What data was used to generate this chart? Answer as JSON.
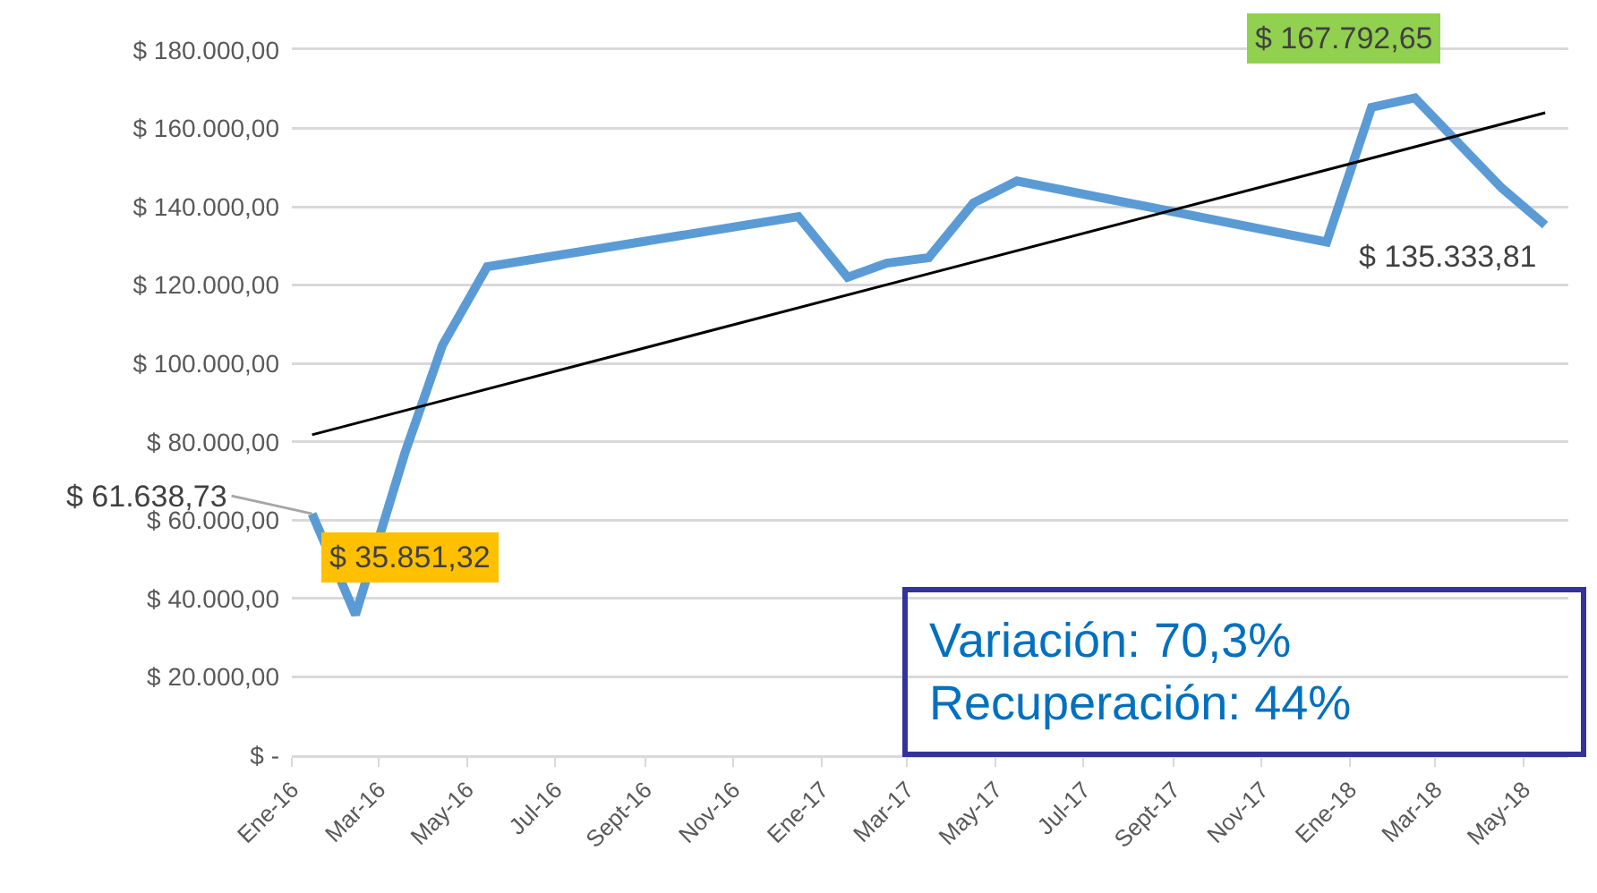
{
  "chart_data": {
    "type": "line",
    "x": [
      "2016-01-15",
      "2016-02-14",
      "2016-03-19",
      "2016-04-14",
      "2016-05-15",
      "2016-12-16",
      "2017-01-19",
      "2017-02-15",
      "2017-03-16",
      "2017-04-16",
      "2017-05-16",
      "2017-12-16",
      "2018-01-16",
      "2018-02-15",
      "2018-04-16",
      "2018-05-16"
    ],
    "series": [
      {
        "color": "#5b9bd5",
        "values": [
          61638.73,
          35851.32,
          77000,
          104600,
          124700,
          137500,
          122000,
          125600,
          127000,
          141000,
          146600,
          131000,
          165400,
          167792.65,
          144800,
          135333.81
        ]
      },
      {
        "type": "line",
        "color": "#000000",
        "x": [
          "2016-01-15",
          "2018-05-16"
        ],
        "values": [
          81800,
          164000
        ]
      }
    ],
    "xlim": [
      "2016-01-01",
      "2018-06-01"
    ],
    "xticks": [
      {
        "value": "2016-01-01",
        "label": "Ene-16"
      },
      {
        "value": "2016-03-01",
        "label": "Mar-16"
      },
      {
        "value": "2016-05-01",
        "label": "May-16"
      },
      {
        "value": "2016-07-01",
        "label": "Jul-16"
      },
      {
        "value": "2016-09-01",
        "label": "Sept-16"
      },
      {
        "value": "2016-11-01",
        "label": "Nov-16"
      },
      {
        "value": "2017-01-01",
        "label": "Ene-17"
      },
      {
        "value": "2017-03-01",
        "label": "Mar-17"
      },
      {
        "value": "2017-05-01",
        "label": "May-17"
      },
      {
        "value": "2017-07-01",
        "label": "Jul-17"
      },
      {
        "value": "2017-09-01",
        "label": "Sept-17"
      },
      {
        "value": "2017-11-01",
        "label": "Nov-17"
      },
      {
        "value": "2018-01-01",
        "label": "Ene-18"
      },
      {
        "value": "2018-03-01",
        "label": "Mar-18"
      },
      {
        "value": "2018-05-01",
        "label": "May-18"
      }
    ],
    "ylim": [
      0,
      180000
    ],
    "yticks": [
      {
        "value": 0,
        "label": "$ -"
      },
      {
        "value": 20000,
        "label": "$ 20.000,00"
      },
      {
        "value": 40000,
        "label": "$ 40.000,00"
      },
      {
        "value": 60000,
        "label": "$ 60.000,00"
      },
      {
        "value": 80000,
        "label": "$ 80.000,00"
      },
      {
        "value": 100000,
        "label": "$ 100.000,00"
      },
      {
        "value": 120000,
        "label": "$ 120.000,00"
      },
      {
        "value": 140000,
        "label": "$ 140.000,00"
      },
      {
        "value": 160000,
        "label": "$ 160.000,00"
      },
      {
        "value": 180000,
        "label": "$ 180.000,00"
      }
    ],
    "grid": "y",
    "marker": "none",
    "line_style": "solid",
    "annotations": [
      {
        "text": "$ 61.638,73",
        "x": "2016-01-15",
        "y": 61638.73
      },
      {
        "text": "$ 35.851,32",
        "x": "2016-02-14",
        "y": 35851.32
      },
      {
        "text": "$ 167.792,65",
        "x": "2018-02-15",
        "y": 167792.65
      },
      {
        "text": "$ 135.333,81",
        "x": "2018-05-16",
        "y": 135333.81
      },
      "Variación: 70,3%\nRecuperación: 44%"
    ]
  }
}
